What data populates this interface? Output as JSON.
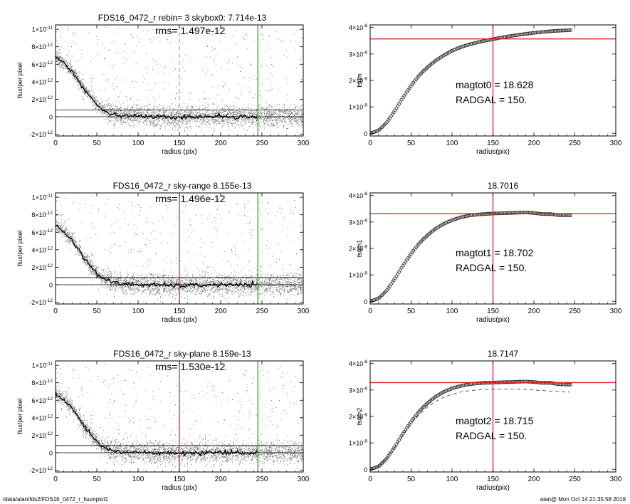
{
  "footer": {
    "path": "/data/alan/fds2/FDS16_0472_r_fsumplot1",
    "stamp": "alan@  Mon Oct 14 21:35:58 2019"
  },
  "colors": {
    "points_light": "#9e9e9e",
    "points_dark": "#1a1a1a",
    "profile": "#000000",
    "marker_red": "#e0201b",
    "marker_green": "#2ecc2e",
    "marker_orange": "#f39a3a",
    "circles": "#303030"
  },
  "chart_data": [
    {
      "id": "profile-1",
      "type": "scatter",
      "title": "FDS16_0472_r rebin= 3    skybox0:  7.714e-13",
      "annotation": "rms= 1.497e-12",
      "xlabel": "radius (pix)",
      "ylabel": "flux/per pixel",
      "xlim": [
        0,
        300
      ],
      "ylim": [
        -2.2e-12,
        1.05e-11
      ],
      "xticks": [
        0,
        50,
        100,
        150,
        200,
        250,
        300
      ],
      "yticks": [
        -2e-12,
        0,
        2e-12,
        4e-12,
        6e-12,
        8e-12,
        1e-11
      ],
      "ytick_labels": [
        [
          "-2×10",
          "-12"
        ],
        [
          "0",
          ""
        ],
        [
          "2×10",
          "-12"
        ],
        [
          "4×10",
          "-12"
        ],
        [
          "6×10",
          "-12"
        ],
        [
          "8×10",
          "-12"
        ],
        [
          "1×10",
          "-11"
        ]
      ],
      "hlines": [
        0,
        7.714e-13
      ],
      "vline_inner": {
        "x": 150,
        "style": "dashed",
        "color": "orange"
      },
      "vline_outer": {
        "x": 245,
        "color": "green"
      },
      "mean_profile": {
        "r": [
          0,
          5,
          10,
          15,
          20,
          25,
          30,
          35,
          40,
          45,
          50,
          55,
          60,
          70,
          80,
          100,
          120,
          150,
          180,
          200,
          220,
          245
        ],
        "flux": [
          6.9e-12,
          6.5e-12,
          6.2e-12,
          5.6e-12,
          5.2e-12,
          4.5e-12,
          3.8e-12,
          3.1e-12,
          2.5e-12,
          1.9e-12,
          1.4e-12,
          1e-12,
          7e-13,
          3e-13,
          1.5e-13,
          5e-14,
          0,
          -1e-13,
          0,
          5e-14,
          0,
          0
        ]
      }
    },
    {
      "id": "fsum-0",
      "type": "scatter",
      "title": "",
      "xlabel": "radius(pix)",
      "ylabel": "fsum",
      "xlim": [
        0,
        300
      ],
      "ylim": [
        -1e-09,
        4.1e-08
      ],
      "xticks": [
        0,
        50,
        100,
        150,
        200,
        250,
        300
      ],
      "yticks": [
        0,
        1e-08,
        2e-08,
        3e-08,
        4e-08
      ],
      "ytick_labels": [
        [
          "0",
          ""
        ],
        [
          "1×10",
          "-8"
        ],
        [
          "2×10",
          "-8"
        ],
        [
          "3×10",
          "-8"
        ],
        [
          "4×10",
          "-8"
        ]
      ],
      "hline": 3.57e-08,
      "vline": 150,
      "text_lines": [
        "magtot0 =  18.628",
        "RADGAL =    150."
      ],
      "curve": {
        "r": [
          0,
          10,
          20,
          30,
          40,
          50,
          60,
          70,
          80,
          90,
          100,
          110,
          120,
          130,
          140,
          150,
          160,
          170,
          180,
          190,
          200,
          210,
          220,
          230,
          245
        ],
        "fsum": [
          0,
          1e-09,
          4e-09,
          8.5e-09,
          1.35e-08,
          1.8e-08,
          2.2e-08,
          2.5e-08,
          2.75e-08,
          2.95e-08,
          3.12e-08,
          3.25e-08,
          3.35e-08,
          3.43e-08,
          3.5e-08,
          3.56e-08,
          3.62e-08,
          3.67e-08,
          3.72e-08,
          3.76e-08,
          3.8e-08,
          3.83e-08,
          3.86e-08,
          3.88e-08,
          3.9e-08
        ]
      }
    },
    {
      "id": "profile-2",
      "type": "scatter",
      "title": "FDS16_0472_r sky-range  8.155e-13",
      "annotation": "rms= 1.496e-12",
      "xlabel": "radius (pix)",
      "ylabel": "flux/per pixel",
      "xlim": [
        0,
        300
      ],
      "ylim": [
        -2.2e-12,
        1.05e-11
      ],
      "xticks": [
        0,
        50,
        100,
        150,
        200,
        250,
        300
      ],
      "yticks": [
        -2e-12,
        0,
        2e-12,
        4e-12,
        6e-12,
        8e-12,
        1e-11
      ],
      "ytick_labels": [
        [
          "-2×10",
          "-12"
        ],
        [
          "0",
          ""
        ],
        [
          "2×10",
          "-12"
        ],
        [
          "4×10",
          "-12"
        ],
        [
          "6×10",
          "-12"
        ],
        [
          "8×10",
          "-12"
        ],
        [
          "1×10",
          "-11"
        ]
      ],
      "hlines": [
        0,
        8.155e-13
      ],
      "vline_inner": {
        "x": 150,
        "style": "solid",
        "color": "red"
      },
      "vline_outer": {
        "x": 245,
        "color": "green"
      },
      "mean_profile": {
        "r": [
          0,
          5,
          10,
          15,
          20,
          25,
          30,
          35,
          40,
          45,
          50,
          55,
          60,
          70,
          80,
          100,
          120,
          150,
          180,
          200,
          220,
          245
        ],
        "flux": [
          6.8e-12,
          6.4e-12,
          6.1e-12,
          5.5e-12,
          5.1e-12,
          4.4e-12,
          3.7e-12,
          3e-12,
          2.4e-12,
          1.8e-12,
          1.3e-12,
          9e-13,
          6e-13,
          2.5e-13,
          1e-13,
          2e-14,
          -5e-14,
          -1e-13,
          -5e-14,
          0,
          -5e-14,
          0
        ]
      }
    },
    {
      "id": "fsum-1",
      "type": "scatter",
      "title": "18.7016",
      "xlabel": "radius(pix)",
      "ylabel": "fsum1",
      "xlim": [
        0,
        300
      ],
      "ylim": [
        -1e-09,
        4.1e-08
      ],
      "xticks": [
        0,
        50,
        100,
        150,
        200,
        250,
        300
      ],
      "yticks": [
        0,
        1e-08,
        2e-08,
        3e-08,
        4e-08
      ],
      "ytick_labels": [
        [
          "0",
          ""
        ],
        [
          "1×10",
          "-8"
        ],
        [
          "2×10",
          "-8"
        ],
        [
          "3×10",
          "-8"
        ],
        [
          "4×10",
          "-8"
        ]
      ],
      "hline": 3.32e-08,
      "vline": 150,
      "text_lines": [
        "magtot1 =  18.702",
        "RADGAL =    150."
      ],
      "curve": {
        "r": [
          0,
          10,
          20,
          30,
          40,
          50,
          60,
          70,
          80,
          90,
          100,
          110,
          120,
          130,
          140,
          150,
          160,
          170,
          180,
          190,
          200,
          210,
          220,
          230,
          245
        ],
        "fsum": [
          0,
          1e-09,
          4e-09,
          8.5e-09,
          1.35e-08,
          1.8e-08,
          2.2e-08,
          2.5e-08,
          2.75e-08,
          2.93e-08,
          3.07e-08,
          3.17e-08,
          3.24e-08,
          3.28e-08,
          3.3e-08,
          3.32e-08,
          3.33e-08,
          3.34e-08,
          3.35e-08,
          3.36e-08,
          3.34e-08,
          3.3e-08,
          3.3e-08,
          3.26e-08,
          3.25e-08
        ]
      }
    },
    {
      "id": "profile-3",
      "type": "scatter",
      "title": "FDS16_0472_r sky-plane  8.159e-13",
      "annotation": "rms= 1.530e-12",
      "xlabel": "radius (pix)",
      "ylabel": "flux/per pixel",
      "xlim": [
        0,
        300
      ],
      "ylim": [
        -2.2e-12,
        1.05e-11
      ],
      "xticks": [
        0,
        50,
        100,
        150,
        200,
        250,
        300
      ],
      "yticks": [
        -2e-12,
        0,
        2e-12,
        4e-12,
        6e-12,
        8e-12,
        1e-11
      ],
      "ytick_labels": [
        [
          "-2×10",
          "-12"
        ],
        [
          "0",
          ""
        ],
        [
          "2×10",
          "-12"
        ],
        [
          "4×10",
          "-12"
        ],
        [
          "6×10",
          "-12"
        ],
        [
          "8×10",
          "-12"
        ],
        [
          "1×10",
          "-11"
        ]
      ],
      "hlines": [
        0,
        8.159e-13
      ],
      "vline_inner": {
        "x": 150,
        "style": "solid",
        "color": "red"
      },
      "vline_outer": {
        "x": 245,
        "color": "green"
      },
      "mean_profile": {
        "r": [
          0,
          5,
          10,
          15,
          20,
          25,
          30,
          35,
          40,
          45,
          50,
          55,
          60,
          70,
          80,
          100,
          120,
          150,
          180,
          200,
          220,
          245
        ],
        "flux": [
          6.8e-12,
          6.4e-12,
          6.1e-12,
          5.5e-12,
          5.1e-12,
          4.4e-12,
          3.7e-12,
          3e-12,
          2.4e-12,
          1.8e-12,
          1.3e-12,
          9e-13,
          6e-13,
          2.5e-13,
          1e-13,
          2e-14,
          -5e-14,
          -1e-13,
          -5e-14,
          0,
          -5e-14,
          0
        ]
      }
    },
    {
      "id": "fsum-2",
      "type": "scatter",
      "title": "18.7147",
      "xlabel": "radius(pix)",
      "ylabel": "fsum2",
      "xlim": [
        0,
        300
      ],
      "ylim": [
        -1e-09,
        4.1e-08
      ],
      "xticks": [
        0,
        50,
        100,
        150,
        200,
        250,
        300
      ],
      "yticks": [
        0,
        1e-08,
        2e-08,
        3e-08,
        4e-08
      ],
      "ytick_labels": [
        [
          "0",
          ""
        ],
        [
          "1×10",
          "-8"
        ],
        [
          "2×10",
          "-8"
        ],
        [
          "3×10",
          "-8"
        ],
        [
          "4×10",
          "-8"
        ]
      ],
      "hline": 3.28e-08,
      "vline": 150,
      "text_lines": [
        "magtot2 =  18.715",
        "RADGAL =    150."
      ],
      "curve": {
        "r": [
          0,
          10,
          20,
          30,
          40,
          50,
          60,
          70,
          80,
          90,
          100,
          110,
          120,
          130,
          140,
          150,
          160,
          170,
          180,
          190,
          200,
          210,
          220,
          230,
          245
        ],
        "fsum": [
          0,
          1e-09,
          4e-09,
          8.5e-09,
          1.35e-08,
          1.8e-08,
          2.2e-08,
          2.5e-08,
          2.75e-08,
          2.93e-08,
          3.06e-08,
          3.15e-08,
          3.21e-08,
          3.25e-08,
          3.27e-08,
          3.28e-08,
          3.29e-08,
          3.3e-08,
          3.31e-08,
          3.32e-08,
          3.3e-08,
          3.27e-08,
          3.27e-08,
          3.22e-08,
          3.2e-08
        ]
      },
      "dashed_curve": {
        "r": [
          0,
          10,
          20,
          30,
          40,
          50,
          60,
          70,
          80,
          90,
          100,
          110,
          120,
          130,
          140,
          150,
          160,
          170,
          180,
          190,
          200,
          210,
          220,
          230,
          245
        ],
        "fsum": [
          0,
          1e-09,
          4e-09,
          8.3e-09,
          1.3e-08,
          1.72e-08,
          2.07e-08,
          2.35e-08,
          2.57e-08,
          2.73e-08,
          2.84e-08,
          2.92e-08,
          2.97e-08,
          3e-08,
          3.02e-08,
          3.03e-08,
          3.04e-08,
          3.04e-08,
          3.03e-08,
          3.02e-08,
          3e-08,
          2.98e-08,
          2.96e-08,
          2.94e-08,
          2.92e-08
        ]
      }
    }
  ]
}
